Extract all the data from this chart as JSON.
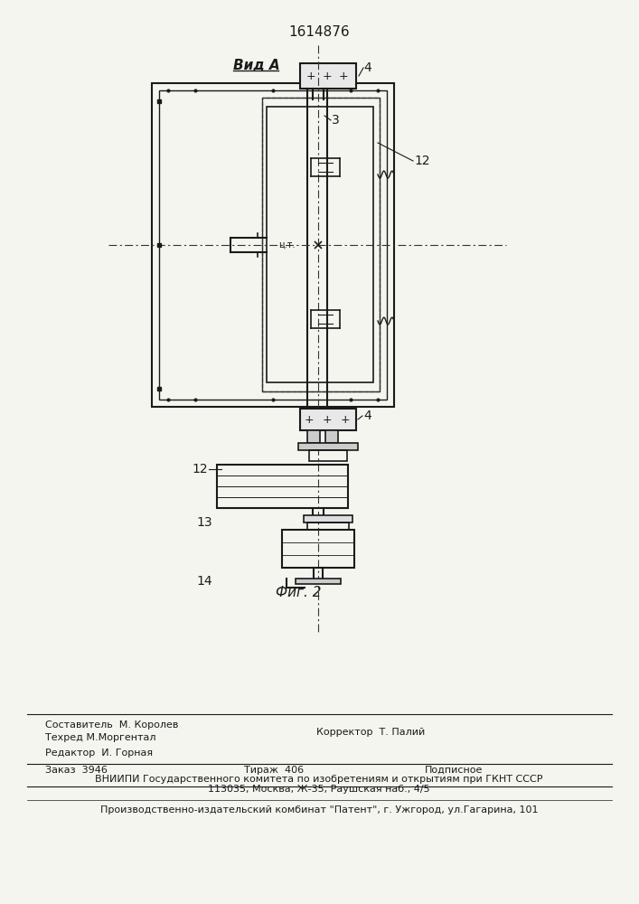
{
  "title": "1614876",
  "vid_a_label": "Вид А",
  "fig2_label": "Фиг. 2",
  "label_4_top": "4",
  "label_3": "3",
  "label_12_right": "12",
  "label_4_bot": "4",
  "label_12_bot": "12",
  "label_13": "13",
  "label_14": "14",
  "label_цт": "ц.т.",
  "footer_line1_left": "Редактор  И. Горная",
  "footer_line1_center_top": "Составитель  М. Королев",
  "footer_line1_center_bot": "Техред М.Моргентал",
  "footer_line1_right": "Корректор  Т. Палий",
  "footer_line2_left": "Заказ  3946",
  "footer_line2_center": "Тираж  406",
  "footer_line2_right": "Подписное",
  "footer_line3": "ВНИИПИ Государственного комитета по изобретениям и открытиям при ГКНТ СССР",
  "footer_line4": "113035, Москва, Ж-35, Раушская наб., 4/5",
  "footer_line5": "Производственно-издательский комбинат \"Патент\", г. Ужгород, ул.Гагарина, 101",
  "bg_color": "#f5f5f0",
  "line_color": "#1a1a1a",
  "dashed_color": "#333333"
}
